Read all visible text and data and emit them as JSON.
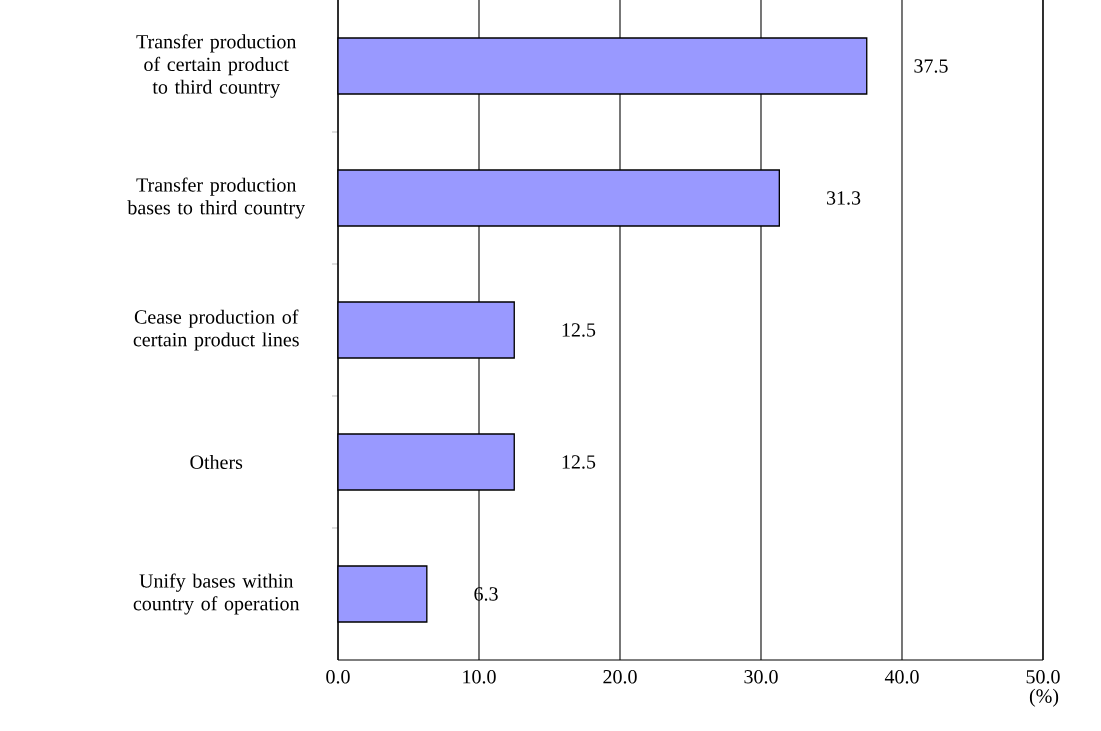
{
  "chart_data": {
    "type": "bar",
    "orientation": "horizontal",
    "categories": [
      "Transfer production of certain product to third country",
      "Transfer production bases to third country",
      "Cease production of certain product lines",
      "Others",
      "Unify bases within country of operation"
    ],
    "values": [
      37.5,
      31.3,
      12.5,
      12.5,
      6.3
    ],
    "color": "#9999ff",
    "xlabel": "(%)",
    "xlim": [
      0,
      50
    ],
    "xticks": [
      {
        "value": 0,
        "label": "0.0"
      },
      {
        "value": 10,
        "label": "10.0"
      },
      {
        "value": 20,
        "label": "20.0"
      },
      {
        "value": 30,
        "label": "30.0"
      },
      {
        "value": 40,
        "label": "40.0"
      },
      {
        "value": 50,
        "label": "50.0"
      }
    ],
    "grid": "x",
    "data_labels": true
  }
}
